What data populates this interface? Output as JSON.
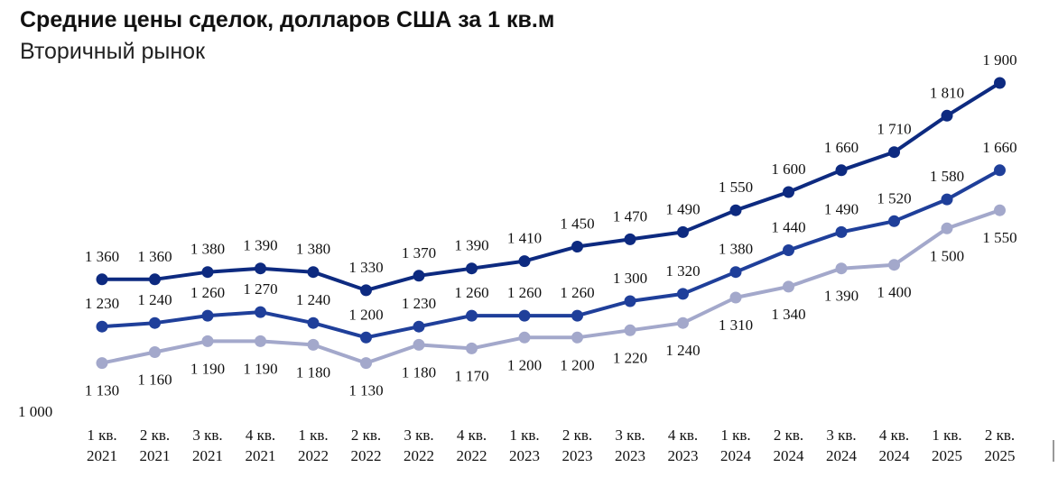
{
  "title": "Средние цены сделок, долларов США за 1 кв.м",
  "subtitle": "Вторичный рынок",
  "chart_data": {
    "type": "line",
    "title": "Средние цены сделок, долларов США за 1 кв.м",
    "subtitle": "Вторичный рынок",
    "xlabel": "",
    "ylabel": "",
    "ylim": [
      1000,
      1900
    ],
    "y_min_label": "1 000",
    "grid": false,
    "legend": "none",
    "categories": [
      [
        "1 кв.",
        "2021"
      ],
      [
        "2 кв.",
        "2021"
      ],
      [
        "3 кв.",
        "2021"
      ],
      [
        "4 кв.",
        "2021"
      ],
      [
        "1 кв.",
        "2022"
      ],
      [
        "2 кв.",
        "2022"
      ],
      [
        "3 кв.",
        "2022"
      ],
      [
        "4 кв.",
        "2022"
      ],
      [
        "1 кв.",
        "2023"
      ],
      [
        "2 кв.",
        "2023"
      ],
      [
        "3 кв.",
        "2023"
      ],
      [
        "4 кв.",
        "2023"
      ],
      [
        "1 кв.",
        "2024"
      ],
      [
        "2 кв.",
        "2024"
      ],
      [
        "3 кв.",
        "2024"
      ],
      [
        "4 кв.",
        "2024"
      ],
      [
        "1 кв.",
        "2025"
      ],
      [
        "2 кв.",
        "2025"
      ]
    ],
    "series": [
      {
        "color": "#0d2a80",
        "label_position": "above",
        "values": [
          1360,
          1360,
          1380,
          1390,
          1380,
          1330,
          1370,
          1390,
          1410,
          1450,
          1470,
          1490,
          1550,
          1600,
          1660,
          1710,
          1810,
          1900
        ],
        "labels": [
          "1 360",
          "1 360",
          "1 380",
          "1 390",
          "1 380",
          "1 330",
          "1 370",
          "1 390",
          "1 410",
          "1 450",
          "1 470",
          "1 490",
          "1 550",
          "1 600",
          "1 660",
          "1 710",
          "1 810",
          "1 900"
        ]
      },
      {
        "color": "#1f3f9a",
        "label_position": "above",
        "values": [
          1230,
          1240,
          1260,
          1270,
          1240,
          1200,
          1230,
          1260,
          1260,
          1260,
          1300,
          1320,
          1380,
          1440,
          1490,
          1520,
          1580,
          1660
        ],
        "labels": [
          "1 230",
          "1 240",
          "1 260",
          "1 270",
          "1 240",
          "1 200",
          "1 230",
          "1 260",
          "1 260",
          "1 260",
          "1 300",
          "1 320",
          "1 380",
          "1 440",
          "1 490",
          "1 520",
          "1 580",
          "1 660"
        ]
      },
      {
        "color": "#a3a8cb",
        "label_position": "below",
        "values": [
          1130,
          1160,
          1190,
          1190,
          1180,
          1130,
          1180,
          1170,
          1200,
          1200,
          1220,
          1240,
          1310,
          1340,
          1390,
          1400,
          1500,
          1550
        ],
        "labels": [
          "1 130",
          "1 160",
          "1 190",
          "1 190",
          "1 180",
          "1 130",
          "1 180",
          "1 170",
          "1 200",
          "1 200",
          "1 220",
          "1 240",
          "1 310",
          "1 340",
          "1 390",
          "1 400",
          "1 500",
          "1 550"
        ]
      }
    ]
  }
}
